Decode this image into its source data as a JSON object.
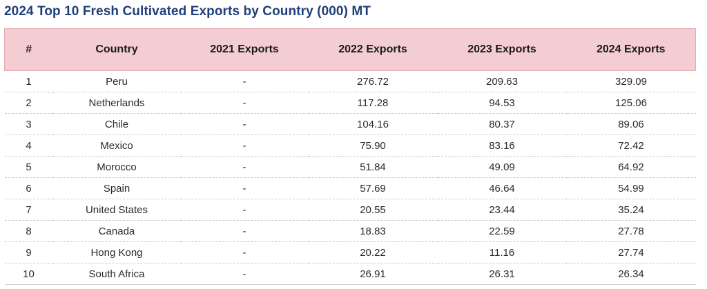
{
  "title": "2024 Top 10 Fresh Cultivated Exports by Country (000) MT",
  "colors": {
    "title": "#1f3f7a",
    "header_background": "#f4cdd2",
    "header_border": "#e3a9b0",
    "row_divider": "#c9c9c9"
  },
  "chart_data": {
    "type": "table",
    "title": "2024 Top 10 Fresh Cultivated Exports by Country (000) MT",
    "columns": [
      "#",
      "Country",
      "2021 Exports",
      "2022 Exports",
      "2023 Exports",
      "2024 Exports"
    ],
    "rows": [
      [
        "1",
        "Peru",
        "-",
        "276.72",
        "209.63",
        "329.09"
      ],
      [
        "2",
        "Netherlands",
        "-",
        "117.28",
        "94.53",
        "125.06"
      ],
      [
        "3",
        "Chile",
        "-",
        "104.16",
        "80.37",
        "89.06"
      ],
      [
        "4",
        "Mexico",
        "-",
        "75.90",
        "83.16",
        "72.42"
      ],
      [
        "5",
        "Morocco",
        "-",
        "51.84",
        "49.09",
        "64.92"
      ],
      [
        "6",
        "Spain",
        "-",
        "57.69",
        "46.64",
        "54.99"
      ],
      [
        "7",
        "United States",
        "-",
        "20.55",
        "23.44",
        "35.24"
      ],
      [
        "8",
        "Canada",
        "-",
        "18.83",
        "22.59",
        "27.78"
      ],
      [
        "9",
        "Hong Kong",
        "-",
        "20.22",
        "11.16",
        "27.74"
      ],
      [
        "10",
        "South Africa",
        "-",
        "26.91",
        "26.31",
        "26.34"
      ]
    ]
  }
}
